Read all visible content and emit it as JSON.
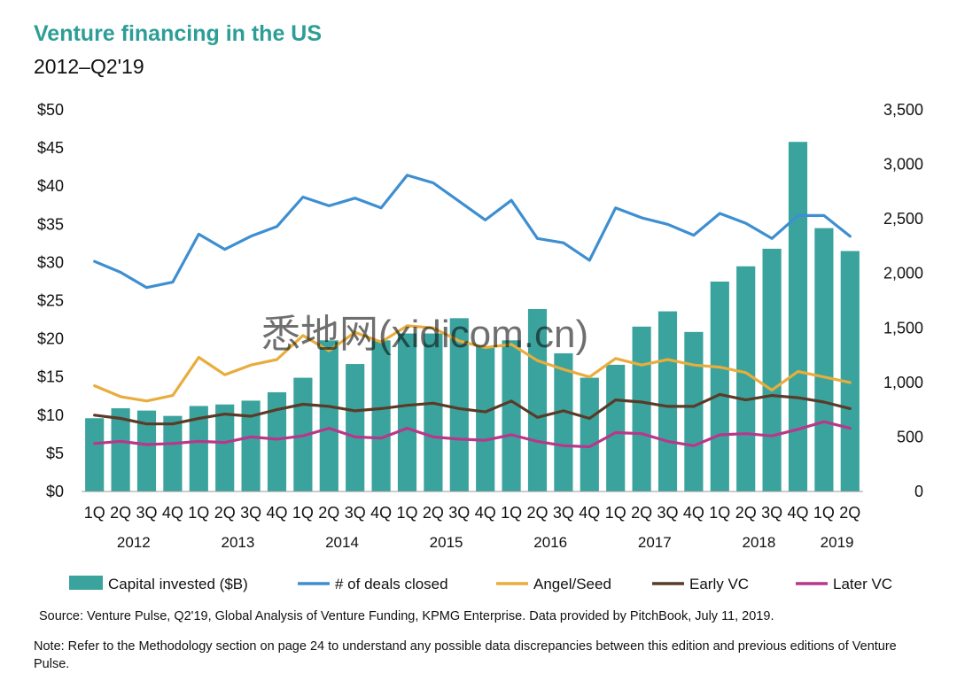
{
  "chart_data": {
    "type": "bar",
    "title": "Venture financing in the US",
    "subtitle": "2012–Q2'19",
    "categories": [
      "1Q",
      "2Q",
      "3Q",
      "4Q",
      "1Q",
      "2Q",
      "3Q",
      "4Q",
      "1Q",
      "2Q",
      "3Q",
      "4Q",
      "1Q",
      "2Q",
      "3Q",
      "4Q",
      "1Q",
      "2Q",
      "3Q",
      "4Q",
      "1Q",
      "2Q",
      "3Q",
      "4Q",
      "1Q",
      "2Q",
      "3Q",
      "4Q",
      "1Q",
      "2Q"
    ],
    "years": [
      {
        "label": "2012",
        "start": 0,
        "end": 3
      },
      {
        "label": "2013",
        "start": 4,
        "end": 7
      },
      {
        "label": "2014",
        "start": 8,
        "end": 11
      },
      {
        "label": "2015",
        "start": 12,
        "end": 15
      },
      {
        "label": "2016",
        "start": 16,
        "end": 19
      },
      {
        "label": "2017",
        "start": 20,
        "end": 23
      },
      {
        "label": "2018",
        "start": 24,
        "end": 27
      },
      {
        "label": "2019",
        "start": 28,
        "end": 29
      }
    ],
    "bar_series": {
      "name": "Capital invested ($B)",
      "color": "#3aa39d",
      "axis": "left",
      "values": [
        9.6,
        10.9,
        10.6,
        9.9,
        11.2,
        11.4,
        11.9,
        13.0,
        14.9,
        19.8,
        16.7,
        19.8,
        20.7,
        20.7,
        22.7,
        19.0,
        19.8,
        23.9,
        18.1,
        14.9,
        16.6,
        21.6,
        23.6,
        20.9,
        27.5,
        29.5,
        31.8,
        45.8,
        34.5,
        31.5
      ]
    },
    "line_series": [
      {
        "name": "# of deals closed",
        "color": "#3d8fd1",
        "axis": "right",
        "values": [
          2110,
          2010,
          1870,
          1920,
          2360,
          2220,
          2340,
          2430,
          2700,
          2620,
          2690,
          2600,
          2900,
          2830,
          2660,
          2490,
          2670,
          2320,
          2280,
          2120,
          2600,
          2510,
          2450,
          2350,
          2550,
          2460,
          2320,
          2530,
          2530,
          2340
        ]
      },
      {
        "name": "Angel/Seed",
        "color": "#e8ad3c",
        "axis": "right",
        "values": [
          970,
          870,
          830,
          880,
          1230,
          1070,
          1160,
          1210,
          1430,
          1290,
          1460,
          1370,
          1520,
          1500,
          1380,
          1320,
          1350,
          1200,
          1120,
          1050,
          1220,
          1160,
          1210,
          1160,
          1140,
          1090,
          930,
          1100,
          1050,
          1000
        ]
      },
      {
        "name": "Early VC",
        "color": "#5a3a28",
        "axis": "right",
        "values": [
          700,
          670,
          620,
          620,
          670,
          710,
          690,
          750,
          800,
          780,
          740,
          760,
          790,
          810,
          760,
          730,
          830,
          680,
          740,
          670,
          840,
          820,
          780,
          780,
          890,
          840,
          880,
          860,
          820,
          760
        ]
      },
      {
        "name": "Later VC",
        "color": "#b8378a",
        "axis": "right",
        "values": [
          440,
          460,
          430,
          440,
          460,
          450,
          500,
          480,
          510,
          580,
          500,
          490,
          580,
          500,
          480,
          470,
          520,
          460,
          420,
          410,
          540,
          530,
          460,
          420,
          520,
          530,
          510,
          570,
          640,
          580
        ]
      }
    ],
    "left_axis": {
      "min": 0,
      "max": 50,
      "step": 5,
      "format": "$"
    },
    "right_axis": {
      "min": 0,
      "max": 3500,
      "step": 500
    },
    "legend": [
      "Capital invested ($B)",
      "# of deals closed",
      "Angel/Seed",
      "Early VC",
      "Later VC"
    ],
    "legend_position": "bottom",
    "grid": false
  },
  "watermark": "悉地网(xidicom.cn)",
  "footer": {
    "source": "Source: Venture Pulse, Q2'19, Global Analysis of Venture Funding, KPMG Enterprise. Data provided by PitchBook, July 11, 2019.",
    "note": "Note: Refer to the Methodology section on page 24 to understand any possible data discrepancies between this edition and previous editions of Venture Pulse."
  }
}
